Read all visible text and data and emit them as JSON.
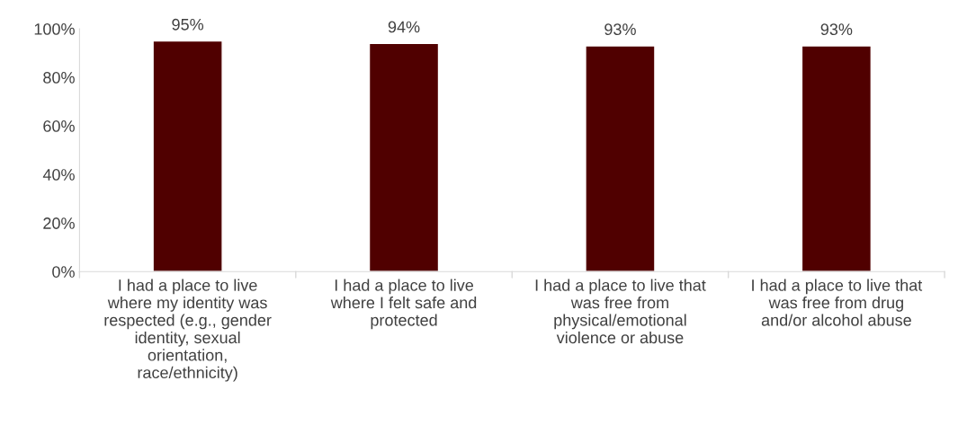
{
  "chart_data": {
    "type": "bar",
    "categories": [
      "I had a place to live\nwhere my identity was\nrespected (e.g., gender\nidentity, sexual\norientation,\nrace/ethnicity)",
      "I had a place to live\nwhere I felt safe and\nprotected",
      "I had a place to live that\nwas free from\nphysical/emotional\nviolence or abuse",
      "I had a place to live that\nwas free from drug\nand/or alcohol abuse"
    ],
    "values": [
      95,
      94,
      93,
      93
    ],
    "value_labels": [
      "95%",
      "94%",
      "93%",
      "93%"
    ],
    "color": "#500000",
    "ylim": [
      0,
      100
    ],
    "yticks": [
      {
        "value": 0,
        "label": "0%"
      },
      {
        "value": 20,
        "label": "20%"
      },
      {
        "value": 40,
        "label": "40%"
      },
      {
        "value": 60,
        "label": "60%"
      },
      {
        "value": 80,
        "label": "80%"
      },
      {
        "value": 100,
        "label": "100%"
      }
    ],
    "grid": false,
    "legend": false
  }
}
